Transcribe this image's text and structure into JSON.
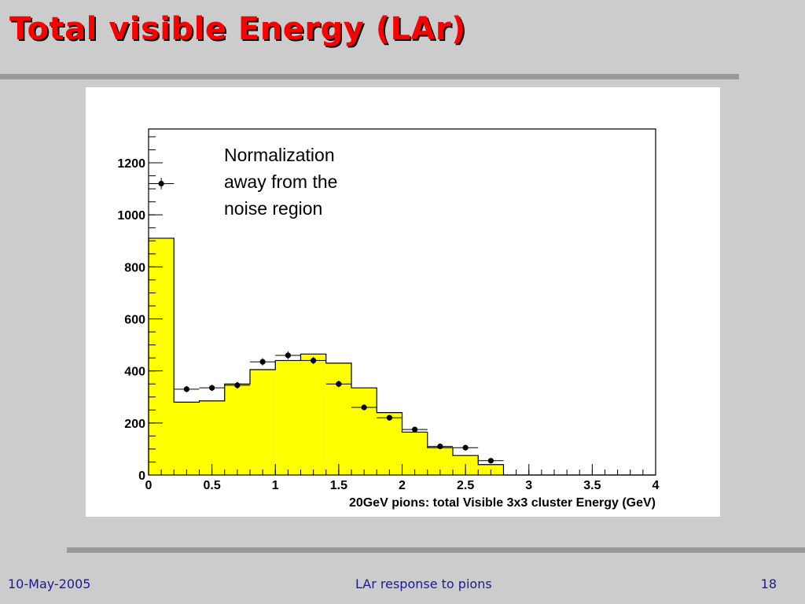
{
  "slide": {
    "title": "Total visible Energy (LAr)",
    "footer_date": "10-May-2005",
    "footer_center": "LAr response to pions",
    "page_number": "18",
    "title_color": "#ff0000",
    "footer_color": "#1a1a99"
  },
  "chart_data": {
    "type": "bar",
    "xlabel": "20GeV pions: total Visible 3x3 cluster Energy (GeV)",
    "ylabel": "",
    "xlim": [
      0,
      4
    ],
    "ylim": [
      0,
      1330
    ],
    "x_ticks": [
      {
        "v": 0,
        "label": "0"
      },
      {
        "v": 0.5,
        "label": "0.5"
      },
      {
        "v": 1,
        "label": "1"
      },
      {
        "v": 1.5,
        "label": "1.5"
      },
      {
        "v": 2,
        "label": "2"
      },
      {
        "v": 2.5,
        "label": "2.5"
      },
      {
        "v": 3,
        "label": "3"
      },
      {
        "v": 3.5,
        "label": "3.5"
      },
      {
        "v": 4,
        "label": "4"
      }
    ],
    "y_ticks": [
      {
        "v": 0,
        "label": "0"
      },
      {
        "v": 200,
        "label": "200"
      },
      {
        "v": 400,
        "label": "400"
      },
      {
        "v": 600,
        "label": "600"
      },
      {
        "v": 800,
        "label": "800"
      },
      {
        "v": 1000,
        "label": "1000"
      },
      {
        "v": 1200,
        "label": "1200"
      }
    ],
    "bin_width": 0.2,
    "histogram": {
      "fill_color": "#ffff00",
      "bin_edges": [
        0,
        0.2,
        0.4,
        0.6,
        0.8,
        1.0,
        1.2,
        1.4,
        1.6,
        1.8,
        2.0,
        2.2,
        2.4,
        2.6,
        2.8,
        3.0,
        3.2,
        3.4,
        3.6,
        3.8,
        4.0
      ],
      "values": [
        910,
        280,
        285,
        350,
        405,
        440,
        465,
        430,
        335,
        240,
        165,
        105,
        75,
        40,
        0,
        0,
        0,
        0,
        0,
        0
      ]
    },
    "points": {
      "marker_color": "#000000",
      "x": [
        0.1,
        0.3,
        0.5,
        0.7,
        0.9,
        1.1,
        1.3,
        1.5,
        1.7,
        1.9,
        2.1,
        2.3,
        2.5,
        2.7
      ],
      "y": [
        1120,
        330,
        335,
        345,
        435,
        460,
        440,
        350,
        260,
        220,
        175,
        110,
        105,
        55
      ],
      "yerr": [
        22,
        12,
        12,
        13,
        14,
        15,
        14,
        13,
        11,
        10,
        9,
        7,
        7,
        5
      ]
    },
    "annotation": [
      "Normalization",
      "away from the",
      "noise region"
    ]
  }
}
